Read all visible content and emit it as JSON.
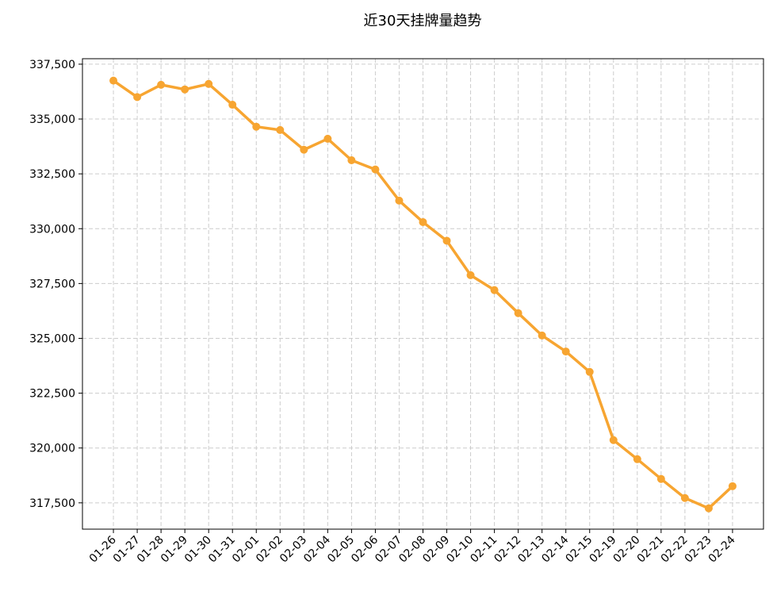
{
  "chart_data": {
    "type": "line",
    "title": "近30天挂牌量趋势",
    "categories": [
      "01-26",
      "01-27",
      "01-28",
      "01-29",
      "01-30",
      "01-31",
      "02-01",
      "02-02",
      "02-03",
      "02-04",
      "02-05",
      "02-06",
      "02-07",
      "02-08",
      "02-09",
      "02-10",
      "02-11",
      "02-12",
      "02-13",
      "02-14",
      "02-15",
      "02-19",
      "02-20",
      "02-21",
      "02-22",
      "02-23",
      "02-24"
    ],
    "series": [
      {
        "color": "#f7a531",
        "values": [
          336750,
          336000,
          336560,
          336350,
          336600,
          335650,
          334650,
          334500,
          333600,
          334100,
          333120,
          332700,
          331280,
          330300,
          329450,
          327880,
          327200,
          326150,
          325130,
          324400,
          323470,
          320360,
          319490,
          318590,
          317720,
          317250,
          318260
        ]
      }
    ],
    "ylim": [
      316300,
      337750
    ],
    "yticks": [
      {
        "value": 317500,
        "label": "317,500"
      },
      {
        "value": 320000,
        "label": "320,000"
      },
      {
        "value": 322500,
        "label": "322,500"
      },
      {
        "value": 325000,
        "label": "325,000"
      },
      {
        "value": 327500,
        "label": "327,500"
      },
      {
        "value": 330000,
        "label": "330,000"
      },
      {
        "value": 332500,
        "label": "332,500"
      },
      {
        "value": 335000,
        "label": "335,000"
      },
      {
        "value": 337500,
        "label": "337,500"
      }
    ],
    "grid": true
  }
}
